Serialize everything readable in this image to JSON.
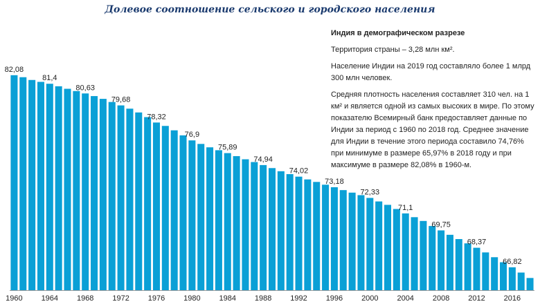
{
  "title": "Долевое соотношение сельского и городского населения",
  "info": {
    "heading": "Индия в демографическом разрезе",
    "p1": "Территория страны – 3,28 млн км².",
    "p2": "Население Индии на 2019 год составляло более 1 млрд 300 млн человек.",
    "p3": "Средняя плотность населения составляет 310 чел. на 1 км² и является одной из самых высоких в мире. По этому показателю Всемирный банк предоставляет данные по Индии за период с 1960 по 2018 год. Среднее значение для Индии в течение этого периода составило 74,76% при минимуме в размере 65,97% в 2018 году и при максимуме в размере 82,08% в 1960-м."
  },
  "colors": {
    "bar": "#0aa0d6",
    "title": "#1a3a6e"
  },
  "chart_data": {
    "type": "bar",
    "categories": [
      "1960",
      "1961",
      "1962",
      "1963",
      "1964",
      "1965",
      "1966",
      "1967",
      "1968",
      "1969",
      "1970",
      "1971",
      "1972",
      "1973",
      "1974",
      "1975",
      "1976",
      "1977",
      "1978",
      "1979",
      "1980",
      "1981",
      "1982",
      "1983",
      "1984",
      "1985",
      "1986",
      "1987",
      "1988",
      "1989",
      "1990",
      "1991",
      "1992",
      "1993",
      "1994",
      "1995",
      "1996",
      "1997",
      "1998",
      "1999",
      "2000",
      "2001",
      "2002",
      "2003",
      "2004",
      "2005",
      "2006",
      "2007",
      "2008",
      "2009",
      "2010",
      "2011",
      "2012",
      "2013",
      "2014",
      "2015",
      "2016",
      "2017",
      "2018"
    ],
    "values": [
      82.08,
      81.92,
      81.7,
      81.55,
      81.4,
      81.2,
      81.0,
      80.82,
      80.63,
      80.42,
      80.2,
      79.95,
      79.68,
      79.42,
      79.12,
      78.75,
      78.32,
      78.05,
      77.7,
      77.3,
      76.9,
      76.62,
      76.35,
      76.12,
      75.89,
      75.65,
      75.4,
      75.18,
      74.94,
      74.7,
      74.45,
      74.22,
      74.02,
      73.8,
      73.6,
      73.38,
      73.18,
      72.95,
      72.75,
      72.55,
      72.33,
      72.05,
      71.78,
      71.45,
      71.1,
      70.8,
      70.5,
      70.1,
      69.75,
      69.4,
      69.06,
      68.72,
      68.37,
      68.0,
      67.62,
      67.22,
      66.82,
      66.4,
      65.97
    ],
    "data_labels": [
      {
        "category": "1960",
        "text": "82,08"
      },
      {
        "category": "1964",
        "text": "81,4"
      },
      {
        "category": "1968",
        "text": "80,63"
      },
      {
        "category": "1972",
        "text": "79,68"
      },
      {
        "category": "1976",
        "text": "78,32"
      },
      {
        "category": "1980",
        "text": "76,9"
      },
      {
        "category": "1984",
        "text": "75,89"
      },
      {
        "category": "1988",
        "text": "74,94"
      },
      {
        "category": "1992",
        "text": "74,02"
      },
      {
        "category": "1996",
        "text": "73,18"
      },
      {
        "category": "2000",
        "text": "72,33"
      },
      {
        "category": "2004",
        "text": "71,1"
      },
      {
        "category": "2008",
        "text": "69,75"
      },
      {
        "category": "2012",
        "text": "68,37"
      },
      {
        "category": "2016",
        "text": "66,82"
      }
    ],
    "x_ticks": [
      "1960",
      "1964",
      "1968",
      "1972",
      "1976",
      "1980",
      "1984",
      "1988",
      "1992",
      "1996",
      "2000",
      "2004",
      "2008",
      "2012",
      "2016"
    ],
    "ylim": [
      65.0,
      82.4
    ],
    "grid": false,
    "legend": "none"
  }
}
